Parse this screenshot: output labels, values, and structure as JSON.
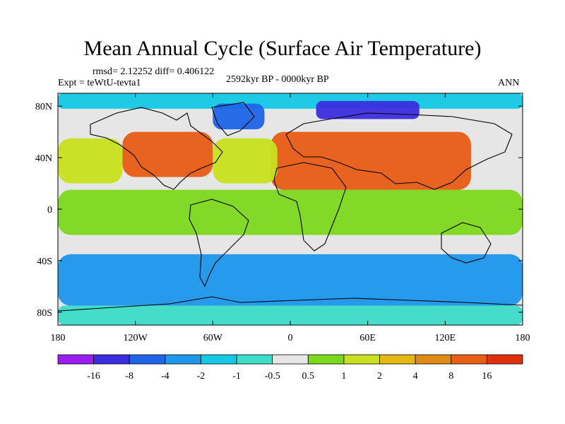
{
  "chart_data": {
    "type": "heatmap",
    "title": "Mean Annual Cycle (Surface Air Temperature)",
    "stats_text": "rmsd= 2.12252 diff= 0.406122",
    "experiment": "Expt = teWtU-tevta1",
    "period": "2592kyr BP - 0000kyr BP",
    "season": "ANN",
    "x_axis": {
      "range": [
        -180,
        180
      ],
      "ticks": [
        {
          "value": -180,
          "label": "180"
        },
        {
          "value": -120,
          "label": "120W"
        },
        {
          "value": -60,
          "label": "60W"
        },
        {
          "value": 0,
          "label": "0"
        },
        {
          "value": 60,
          "label": "60E"
        },
        {
          "value": 120,
          "label": "120E"
        },
        {
          "value": 180,
          "label": "180"
        }
      ]
    },
    "y_axis": {
      "range": [
        -90,
        90
      ],
      "ticks": [
        {
          "value": 80,
          "label": "80N"
        },
        {
          "value": 40,
          "label": "40N"
        },
        {
          "value": 0,
          "label": "0"
        },
        {
          "value": -40,
          "label": "40S"
        },
        {
          "value": -80,
          "label": "80S"
        }
      ]
    },
    "colorbar": {
      "colors": [
        "#9a1ef2",
        "#3c2ee0",
        "#1e64e6",
        "#1e96ec",
        "#14c8e6",
        "#3cdcc8",
        "#e6e6e6",
        "#7cd81c",
        "#c8e01e",
        "#e6b814",
        "#e08c14",
        "#e85c14",
        "#e0300c"
      ],
      "labels": [
        "-16",
        "-8",
        "-4",
        "-2",
        "-1",
        "-0.5",
        "0.5",
        "1",
        "2",
        "4",
        "8",
        "16"
      ]
    },
    "regions": [
      {
        "name": "arctic-ocean",
        "lon": [
          -180,
          180
        ],
        "lat": [
          78,
          90
        ],
        "level": "-1"
      },
      {
        "name": "greenland-cooling",
        "lon": [
          -60,
          -20
        ],
        "lat": [
          62,
          82
        ],
        "level": "-4"
      },
      {
        "name": "barents-kara-cooling",
        "lon": [
          20,
          100
        ],
        "lat": [
          70,
          84
        ],
        "level": "-8"
      },
      {
        "name": "north-america-warming",
        "lon": [
          -130,
          -60
        ],
        "lat": [
          25,
          60
        ],
        "level": "8"
      },
      {
        "name": "eurasia-africa-warming",
        "lon": [
          -15,
          140
        ],
        "lat": [
          15,
          60
        ],
        "level": "8"
      },
      {
        "name": "north-pacific",
        "lon": [
          -180,
          -130
        ],
        "lat": [
          20,
          55
        ],
        "level": "1"
      },
      {
        "name": "north-atlantic",
        "lon": [
          -60,
          -10
        ],
        "lat": [
          20,
          55
        ],
        "level": "1"
      },
      {
        "name": "tropical-belt",
        "lon": [
          -180,
          180
        ],
        "lat": [
          -20,
          15
        ],
        "level": "0.5"
      },
      {
        "name": "southern-ocean",
        "lon": [
          -180,
          180
        ],
        "lat": [
          -75,
          -35
        ],
        "level": "-2"
      },
      {
        "name": "antarctica",
        "lon": [
          -180,
          180
        ],
        "lat": [
          -90,
          -75
        ],
        "level": "-0.5"
      }
    ]
  }
}
